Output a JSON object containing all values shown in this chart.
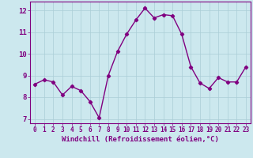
{
  "x": [
    0,
    1,
    2,
    3,
    4,
    5,
    6,
    7,
    8,
    9,
    10,
    11,
    12,
    13,
    14,
    15,
    16,
    17,
    18,
    19,
    20,
    21,
    22,
    23
  ],
  "y": [
    8.6,
    8.8,
    8.7,
    8.1,
    8.5,
    8.3,
    7.8,
    7.05,
    9.0,
    10.1,
    10.9,
    11.55,
    12.1,
    11.65,
    11.8,
    11.75,
    10.9,
    9.4,
    8.65,
    8.4,
    8.9,
    8.7,
    8.7,
    9.4
  ],
  "line_color": "#800080",
  "marker": "D",
  "marker_size": 2.2,
  "line_width": 1.0,
  "xlabel": "Windchill (Refroidissement éolien,°C)",
  "xlabel_fontsize": 6.5,
  "xtick_labels": [
    "0",
    "1",
    "2",
    "3",
    "4",
    "5",
    "6",
    "7",
    "8",
    "9",
    "10",
    "11",
    "12",
    "13",
    "14",
    "15",
    "16",
    "17",
    "18",
    "19",
    "20",
    "21",
    "22",
    "23"
  ],
  "xlim": [
    -0.5,
    23.5
  ],
  "ylim": [
    6.8,
    12.4
  ],
  "yticks": [
    7,
    8,
    9,
    10,
    11,
    12
  ],
  "ytick_fontsize": 6.5,
  "xtick_fontsize": 5.5,
  "grid_color": "#aacdd6",
  "bg_color": "#cce8ee",
  "tick_color": "#800080",
  "spine_color": "#800080"
}
